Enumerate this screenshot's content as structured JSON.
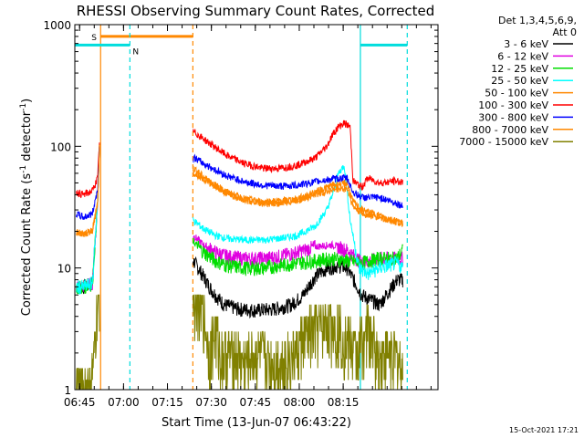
{
  "chart_data": {
    "type": "line",
    "title": "RHESSI Observing Summary Count Rates, Corrected",
    "xlabel": "Start Time (13-Jun-07 06:43:22)",
    "ylabel": "Corrected Count Rate (s",
    "ylabel_sup": "-1",
    "ylabel_mid": " detector",
    "ylabel_sup2": "-1",
    "ylabel_end": ")",
    "y_scale": "log",
    "ylim": [
      1,
      1000
    ],
    "y_ticks": [
      1,
      10,
      100,
      1000
    ],
    "y_tick_labels": [
      "1",
      "10",
      "100",
      "1000"
    ],
    "x_range_min": [
      0,
      124
    ],
    "x_ticks_min": [
      1.63,
      16.63,
      31.63,
      46.63,
      61.63,
      76.63,
      91.63
    ],
    "x_tick_labels": [
      "06:45",
      "07:00",
      "07:15",
      "07:30",
      "07:45",
      "08:00",
      "08:15"
    ],
    "legend_header": [
      "Det 1,3,4,5,6,9,",
      "Att 0"
    ],
    "legend_position": "right",
    "footer_date": "15-Oct-2021 17:21",
    "flag_labels": {
      "saa": "S",
      "night": "N"
    },
    "data_gaps_min": [
      [
        8.5,
        40.3
      ]
    ],
    "series": [
      {
        "name": "3 - 6 keV",
        "color": "#000000",
        "points": [
          [
            0.5,
            7
          ],
          [
            3,
            7
          ],
          [
            6,
            7.5
          ],
          [
            7.8,
            35
          ],
          [
            8.4,
            100
          ],
          [
            41,
            11
          ],
          [
            44,
            8.5
          ],
          [
            46,
            7
          ],
          [
            48,
            6
          ],
          [
            51,
            5
          ],
          [
            56,
            4.6
          ],
          [
            62,
            4.5
          ],
          [
            68,
            4.6
          ],
          [
            74,
            5
          ],
          [
            78,
            6
          ],
          [
            82,
            8.5
          ],
          [
            86,
            10
          ],
          [
            90,
            10.5
          ],
          [
            93,
            10
          ],
          [
            98,
            6
          ],
          [
            104,
            5
          ],
          [
            110,
            8
          ],
          [
            112,
            8
          ]
        ]
      },
      {
        "name": "6 - 12 keV",
        "color": "#e000e0",
        "points": [
          [
            0.5,
            7
          ],
          [
            3,
            7
          ],
          [
            6,
            7.5
          ],
          [
            7.8,
            35
          ],
          [
            8.4,
            100
          ],
          [
            41,
            18
          ],
          [
            44,
            15.5
          ],
          [
            48,
            13.5
          ],
          [
            52,
            12.5
          ],
          [
            58,
            12
          ],
          [
            64,
            12
          ],
          [
            70,
            12.5
          ],
          [
            76,
            13.5
          ],
          [
            82,
            15
          ],
          [
            88,
            15.5
          ],
          [
            93,
            14
          ],
          [
            98,
            11
          ],
          [
            104,
            12
          ],
          [
            112,
            12
          ]
        ]
      },
      {
        "name": "12 - 25 keV",
        "color": "#00dd00",
        "points": [
          [
            0.5,
            7
          ],
          [
            3,
            7
          ],
          [
            6,
            7.5
          ],
          [
            7.8,
            35
          ],
          [
            8.4,
            100
          ],
          [
            41,
            16
          ],
          [
            44,
            13.5
          ],
          [
            48,
            11.5
          ],
          [
            52,
            10.5
          ],
          [
            58,
            10
          ],
          [
            64,
            10
          ],
          [
            70,
            10.5
          ],
          [
            76,
            11
          ],
          [
            82,
            11.5
          ],
          [
            88,
            12
          ],
          [
            93,
            11.5
          ],
          [
            98,
            11
          ],
          [
            104,
            12
          ],
          [
            110,
            12
          ],
          [
            112,
            14
          ]
        ]
      },
      {
        "name": "25 - 50 keV",
        "color": "#00ffff",
        "points": [
          [
            0.5,
            7
          ],
          [
            3,
            7
          ],
          [
            6,
            7.5
          ],
          [
            7.8,
            35
          ],
          [
            8.4,
            100
          ],
          [
            41,
            24
          ],
          [
            44,
            21
          ],
          [
            48,
            18.5
          ],
          [
            52,
            17.5
          ],
          [
            58,
            17
          ],
          [
            64,
            17
          ],
          [
            70,
            17.5
          ],
          [
            76,
            18.5
          ],
          [
            82,
            22
          ],
          [
            86,
            30
          ],
          [
            88,
            40
          ],
          [
            90,
            60
          ],
          [
            92,
            70
          ],
          [
            94,
            25
          ],
          [
            97,
            10
          ],
          [
            100,
            9
          ],
          [
            104,
            10
          ],
          [
            110,
            11
          ],
          [
            112,
            10
          ]
        ]
      },
      {
        "name": "50 - 100 keV",
        "color": "#ff8800",
        "points": [
          [
            0.5,
            20
          ],
          [
            3,
            19
          ],
          [
            6,
            20
          ],
          [
            7.8,
            35
          ],
          [
            8.4,
            100
          ],
          [
            41,
            65
          ],
          [
            44,
            56
          ],
          [
            48,
            48
          ],
          [
            52,
            42
          ],
          [
            58,
            37
          ],
          [
            64,
            35
          ],
          [
            70,
            35.5
          ],
          [
            76,
            37
          ],
          [
            82,
            42
          ],
          [
            88,
            48
          ],
          [
            93,
            50
          ],
          [
            95,
            35
          ],
          [
            98,
            30
          ],
          [
            104,
            27
          ],
          [
            110,
            24
          ],
          [
            112,
            23
          ]
        ]
      },
      {
        "name": "100 - 300 keV",
        "color": "#ff0000",
        "points": [
          [
            0.5,
            42
          ],
          [
            3,
            40
          ],
          [
            6,
            43
          ],
          [
            7.8,
            55
          ],
          [
            8.4,
            110
          ],
          [
            41,
            130
          ],
          [
            44,
            115
          ],
          [
            48,
            98
          ],
          [
            52,
            84
          ],
          [
            58,
            72
          ],
          [
            64,
            66
          ],
          [
            70,
            66
          ],
          [
            76,
            70
          ],
          [
            82,
            80
          ],
          [
            86,
            100
          ],
          [
            88,
            125
          ],
          [
            90,
            145
          ],
          [
            92,
            155
          ],
          [
            94,
            145
          ],
          [
            95,
            52
          ],
          [
            98,
            46
          ],
          [
            100,
            55
          ],
          [
            104,
            50
          ],
          [
            110,
            52
          ],
          [
            112,
            50
          ]
        ]
      },
      {
        "name": "300 - 800 keV",
        "color": "#0000ff",
        "points": [
          [
            0.5,
            28
          ],
          [
            3,
            26
          ],
          [
            6,
            28
          ],
          [
            7.8,
            45
          ],
          [
            8.4,
            100
          ],
          [
            41,
            80
          ],
          [
            44,
            72
          ],
          [
            48,
            64
          ],
          [
            52,
            57
          ],
          [
            58,
            51
          ],
          [
            64,
            48
          ],
          [
            70,
            47
          ],
          [
            76,
            48
          ],
          [
            82,
            51
          ],
          [
            88,
            54
          ],
          [
            93,
            55
          ],
          [
            95,
            42
          ],
          [
            98,
            38
          ],
          [
            104,
            38
          ],
          [
            110,
            34
          ],
          [
            112,
            32
          ]
        ]
      },
      {
        "name": "800 - 7000 keV",
        "color": "#ff8800",
        "points": [
          [
            0.5,
            20
          ],
          [
            3,
            19
          ],
          [
            6,
            20
          ],
          [
            7.8,
            35
          ],
          [
            8.4,
            100
          ],
          [
            41,
            60
          ],
          [
            44,
            54
          ],
          [
            48,
            47
          ],
          [
            52,
            41
          ],
          [
            58,
            36
          ],
          [
            64,
            34
          ],
          [
            70,
            34
          ],
          [
            76,
            36
          ],
          [
            82,
            40
          ],
          [
            88,
            44
          ],
          [
            93,
            45
          ],
          [
            95,
            32
          ],
          [
            98,
            28
          ],
          [
            104,
            26
          ],
          [
            110,
            24
          ],
          [
            112,
            23
          ]
        ]
      },
      {
        "name": "7000 - 15000 keV",
        "color": "#808000",
        "points": [
          [
            0.5,
            1
          ],
          [
            5,
            1
          ],
          [
            6.5,
            1.5
          ],
          [
            7.5,
            4
          ],
          [
            8.4,
            5
          ],
          [
            41,
            6
          ],
          [
            44,
            4
          ],
          [
            46,
            2
          ],
          [
            48,
            3
          ],
          [
            50,
            1.8
          ],
          [
            54,
            2
          ],
          [
            58,
            1.6
          ],
          [
            62,
            1.9
          ],
          [
            66,
            1.7
          ],
          [
            70,
            1.6
          ],
          [
            74,
            1.8
          ],
          [
            78,
            2.5
          ],
          [
            82,
            3
          ],
          [
            86,
            3.5
          ],
          [
            90,
            3
          ],
          [
            93,
            2.5
          ],
          [
            96,
            2
          ],
          [
            100,
            3
          ],
          [
            104,
            1.8
          ],
          [
            108,
            2
          ],
          [
            112,
            1.5
          ]
        ]
      }
    ],
    "flags": {
      "saa": {
        "color": "#ff8800",
        "solid_at": [
          8.8
        ],
        "dashed_at": [
          40.3
        ],
        "bar_y": 800,
        "bar": [
          8.8,
          40.3
        ]
      },
      "night": {
        "color": "#00dddd",
        "solid_at": [
          97.5
        ],
        "dashed_at": [
          18.8,
          113.5
        ],
        "bar_y": 680,
        "bar": [
          [
            0,
            18.8
          ],
          [
            97.5,
            113.5
          ]
        ]
      }
    }
  }
}
